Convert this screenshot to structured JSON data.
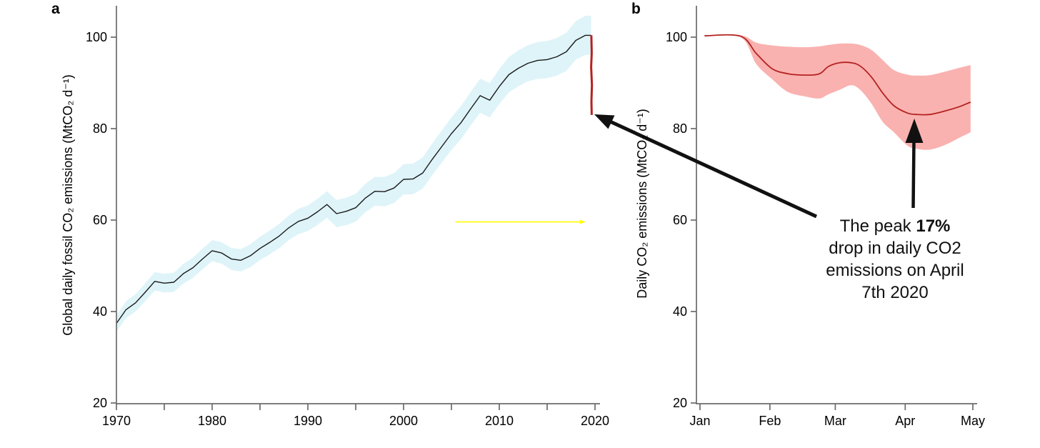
{
  "figure": {
    "background": "#ffffff",
    "panel_a_letter": "a",
    "panel_b_letter": "b"
  },
  "colors": {
    "black_line": "#1a1a1a",
    "blue_band": "#def4f9",
    "red_line": "#b42220",
    "pink_band": "#f9b2b0",
    "yellow_marker": "#ffff00",
    "axis": "#6b6b6b",
    "arrow": "#111111",
    "text": "#000000"
  },
  "annotation": {
    "line1_prefix": "The peak ",
    "line1_bold": "17%",
    "line2": "drop in daily CO2",
    "line3": "emissions on April",
    "line4": "7th 2020"
  },
  "chart_data": [
    {
      "id": "a",
      "type": "line",
      "title": "",
      "xlabel": "",
      "ylabel": "Global daily fossil CO₂ emissions (MtCO₂ d⁻¹)",
      "xlim": [
        1970,
        2020.5
      ],
      "ylim": [
        20,
        105
      ],
      "grid": false,
      "legend": "none",
      "x_ticks": [
        1970,
        1980,
        1990,
        2000,
        2010,
        2020
      ],
      "x_minor_ticks": [
        1975,
        1985,
        1995,
        2005,
        2015
      ],
      "y_ticks": [
        20,
        40,
        60,
        80,
        100
      ],
      "series": [
        {
          "name": "global-daily-fossil-co2-emissions",
          "color": "#1a1a1a",
          "band_color": "#def4f9",
          "band_halfwidth_start": 1.8,
          "band_halfwidth_end": 4.3,
          "x": [
            1970,
            1971,
            1972,
            1973,
            1974,
            1975,
            1976,
            1977,
            1978,
            1979,
            1980,
            1981,
            1982,
            1983,
            1984,
            1985,
            1986,
            1987,
            1988,
            1989,
            1990,
            1991,
            1992,
            1993,
            1994,
            1995,
            1996,
            1997,
            1998,
            1999,
            2000,
            2001,
            2002,
            2003,
            2004,
            2005,
            2006,
            2007,
            2008,
            2009,
            2010,
            2011,
            2012,
            2013,
            2014,
            2015,
            2016,
            2017,
            2018,
            2019,
            2019.6
          ],
          "y": [
            37.4,
            40.4,
            41.9,
            44.2,
            46.6,
            46.2,
            46.4,
            48.3,
            49.6,
            51.5,
            53.3,
            52.8,
            51.5,
            51.2,
            52.2,
            53.8,
            55.1,
            56.5,
            58.3,
            59.7,
            60.4,
            61.8,
            63.4,
            61.4,
            61.9,
            62.7,
            64.8,
            66.3,
            66.2,
            67.0,
            68.9,
            69.0,
            70.3,
            73.3,
            76.1,
            78.9,
            81.3,
            84.3,
            87.2,
            86.2,
            89.2,
            91.8,
            93.2,
            94.3,
            94.9,
            95.1,
            95.7,
            96.8,
            99.3,
            100.4,
            100.4
          ]
        },
        {
          "name": "drop-2020",
          "color": "#b42220",
          "x": [
            2019.62,
            2019.66,
            2019.6,
            2019.68,
            2019.63,
            2019.66
          ],
          "y": [
            100.4,
            96.5,
            93.5,
            89.5,
            86.0,
            83.0
          ]
        }
      ],
      "yellow_marker": {
        "y": 59.6,
        "x_start": 2005.4,
        "x_end": 2019.0,
        "color": "#ffff00"
      }
    },
    {
      "id": "b",
      "type": "line",
      "title": "",
      "xlabel": "",
      "ylabel": "Daily CO₂ emissions (MtCO₂ d⁻¹)",
      "xlim_days": [
        0,
        124
      ],
      "ylim": [
        20,
        105
      ],
      "grid": false,
      "legend": "none",
      "x_tick_labels": [
        "Jan",
        "Feb",
        "Mar",
        "Apr",
        "May"
      ],
      "x_tick_days": [
        0,
        31,
        60,
        91,
        121
      ],
      "y_ticks": [
        20,
        40,
        60,
        80,
        100
      ],
      "series": [
        {
          "name": "daily-co2-emissions-2020",
          "color": "#b42220",
          "band_color": "#f9b2b0",
          "x_days": [
            2,
            18,
            25,
            32,
            39,
            47,
            53,
            57,
            62,
            67,
            71,
            76,
            81,
            86,
            92,
            96,
            102,
            109,
            115,
            120
          ],
          "y": [
            100.3,
            100.2,
            96.4,
            93.1,
            92.0,
            91.7,
            92.0,
            93.6,
            94.4,
            94.4,
            93.7,
            91.3,
            87.8,
            85.0,
            83.4,
            83.1,
            83.1,
            83.9,
            84.8,
            85.8
          ],
          "band_upper": [
            100.4,
            100.4,
            98.8,
            98.2,
            97.9,
            97.8,
            98.0,
            98.3,
            98.6,
            98.6,
            98.3,
            97.2,
            95.0,
            92.8,
            91.8,
            91.6,
            91.7,
            92.5,
            93.3,
            93.9
          ],
          "band_lower": [
            100.2,
            100.0,
            94.1,
            90.8,
            88.0,
            87.0,
            86.6,
            87.5,
            88.5,
            89.5,
            88.5,
            85.5,
            81.5,
            79.2,
            76.3,
            75.6,
            75.4,
            76.5,
            78.0,
            79.2
          ]
        }
      ],
      "min_point": {
        "day": 96,
        "value": 83.1
      }
    }
  ]
}
